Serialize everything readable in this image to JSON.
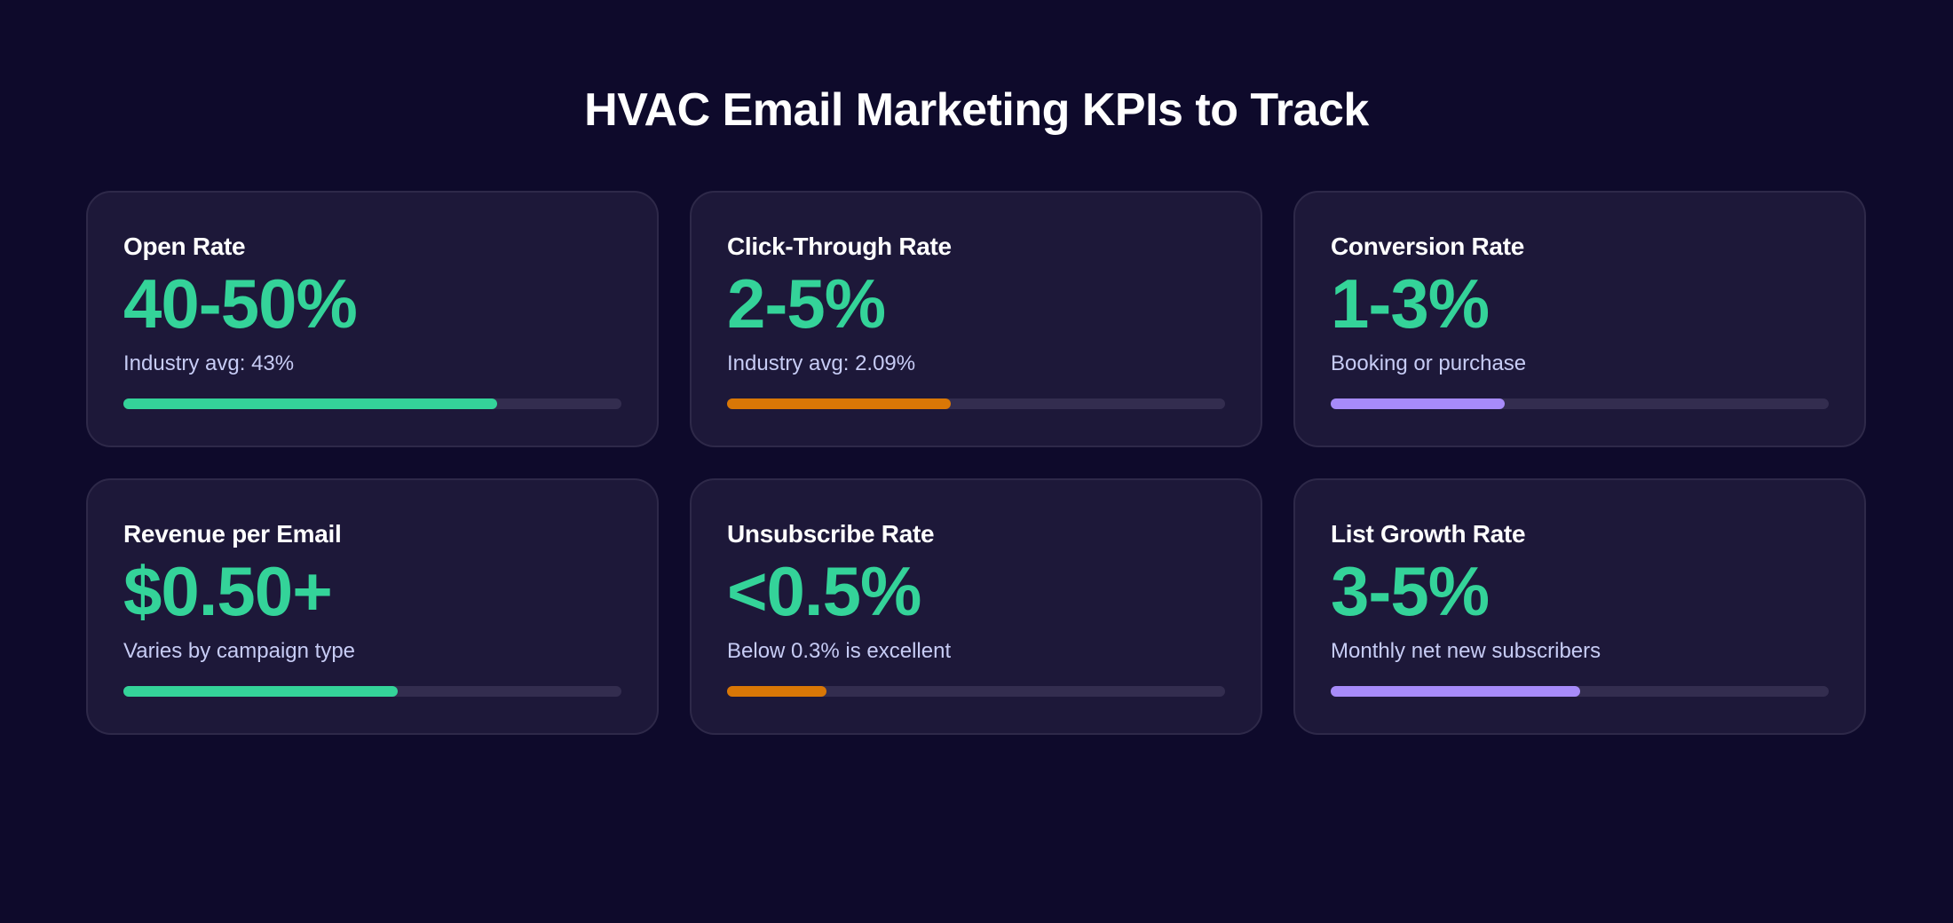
{
  "title": "HVAC Email Marketing KPIs to Track",
  "colors": {
    "background": "#0e0a2b",
    "card": "#1d1839",
    "value": "#34d399",
    "green": "#34d399",
    "orange": "#d97706",
    "purple": "#a78bfa",
    "track": "#332d4f"
  },
  "cards": [
    {
      "label": "Open Rate",
      "value": "40-50%",
      "sub": "Industry avg: 43%",
      "progress": 75,
      "bar_color": "#34d399"
    },
    {
      "label": "Click-Through Rate",
      "value": "2-5%",
      "sub": "Industry avg: 2.09%",
      "progress": 45,
      "bar_color": "#d97706"
    },
    {
      "label": "Conversion Rate",
      "value": "1-3%",
      "sub": "Booking or purchase",
      "progress": 35,
      "bar_color": "#a78bfa"
    },
    {
      "label": "Revenue per Email",
      "value": "$0.50+",
      "sub": "Varies by campaign type",
      "progress": 55,
      "bar_color": "#34d399"
    },
    {
      "label": "Unsubscribe Rate",
      "value": "<0.5%",
      "sub": "Below 0.3% is excellent",
      "progress": 20,
      "bar_color": "#d97706"
    },
    {
      "label": "List Growth Rate",
      "value": "3-5%",
      "sub": "Monthly net new subscribers",
      "progress": 50,
      "bar_color": "#a78bfa"
    }
  ]
}
